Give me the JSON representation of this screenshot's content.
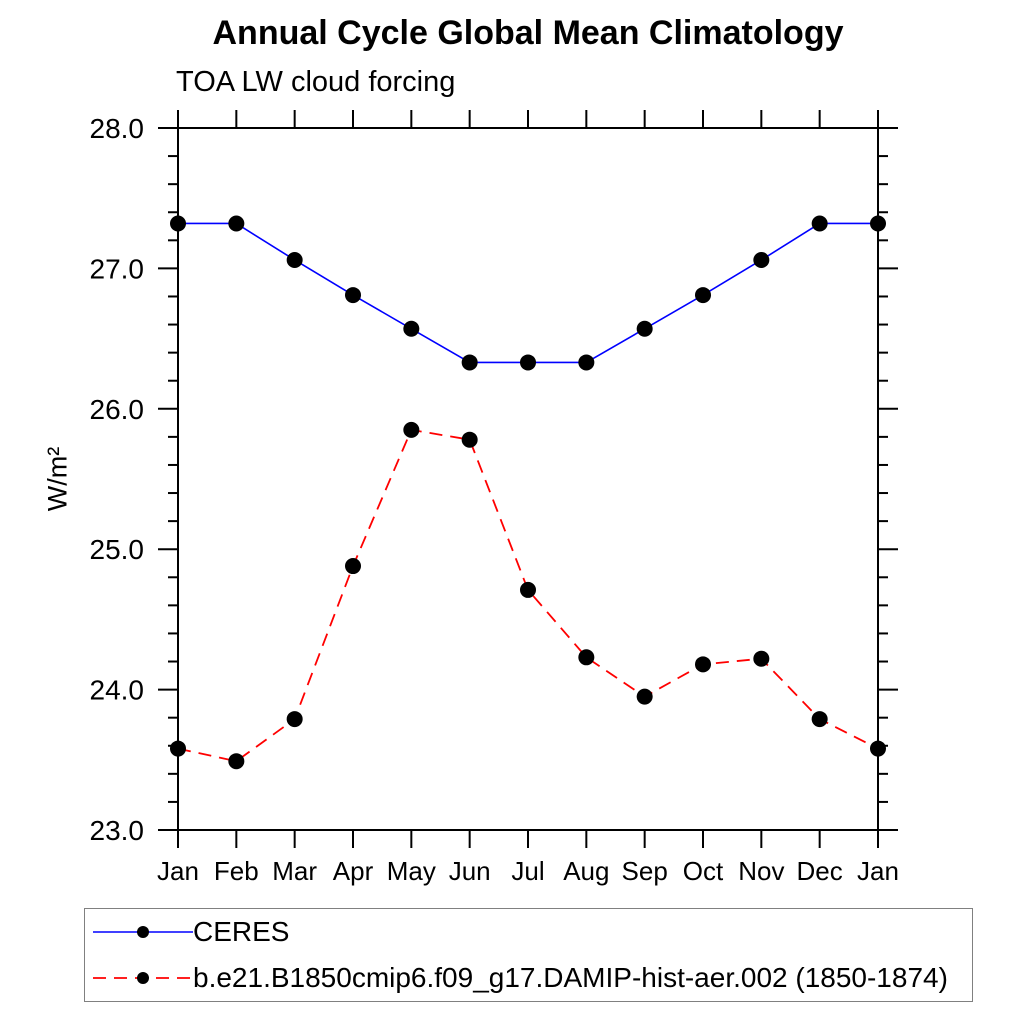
{
  "title": "Annual Cycle Global Mean Climatology",
  "subtitle": "TOA LW cloud forcing",
  "ylabel": "W/m²",
  "axis_color": "#000000",
  "marker_color": "#000000",
  "legend_border_color": "#808080",
  "chart_data": {
    "type": "line",
    "title": "Annual Cycle Global Mean Climatology",
    "subtitle": "TOA LW cloud forcing",
    "xlabel": "",
    "ylabel": "W/m²",
    "categories": [
      "Jan",
      "Feb",
      "Mar",
      "Apr",
      "May",
      "Jun",
      "Jul",
      "Aug",
      "Sep",
      "Oct",
      "Nov",
      "Dec",
      "Jan"
    ],
    "ylim": [
      23.0,
      28.0
    ],
    "ytick_major": 1.0,
    "ytick_minor": 0.2,
    "ytick_labels": [
      "23.0",
      "24.0",
      "25.0",
      "26.0",
      "27.0",
      "28.0"
    ],
    "grid": false,
    "legend_position": "bottom-left-box",
    "series": [
      {
        "name": "CERES",
        "color": "#0000ff",
        "line_style": "solid",
        "marker": "filled-circle",
        "marker_color": "#000000",
        "values": [
          27.32,
          27.32,
          27.06,
          26.81,
          26.57,
          26.33,
          26.33,
          26.33,
          26.57,
          26.81,
          27.06,
          27.32,
          27.32
        ]
      },
      {
        "name": "b.e21.B1850cmip6.f09_g17.DAMIP-hist-aer.002 (1850-1874)",
        "color": "#ff0000",
        "line_style": "dashed",
        "marker": "filled-circle",
        "marker_color": "#000000",
        "values": [
          23.58,
          23.49,
          23.79,
          24.88,
          25.85,
          25.78,
          24.71,
          24.23,
          23.95,
          24.18,
          24.22,
          23.79,
          23.58
        ]
      }
    ]
  }
}
